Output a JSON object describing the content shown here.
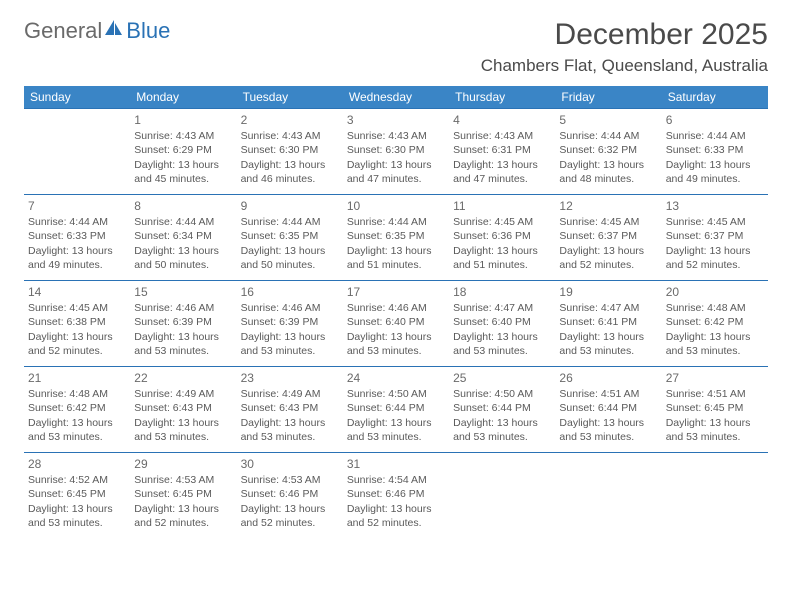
{
  "brand": {
    "part1": "General",
    "part2": "Blue"
  },
  "title": "December 2025",
  "location": "Chambers Flat, Queensland, Australia",
  "colors": {
    "header_bg": "#3a85c6",
    "header_text": "#ffffff",
    "border": "#2a72b5",
    "body_text": "#5a5a5a",
    "brand_gray": "#6a6a6a",
    "brand_blue": "#2a72b5"
  },
  "weekdays": [
    "Sunday",
    "Monday",
    "Tuesday",
    "Wednesday",
    "Thursday",
    "Friday",
    "Saturday"
  ],
  "start_offset": 1,
  "days_in_month": 31,
  "days": {
    "1": {
      "sunrise": "4:43 AM",
      "sunset": "6:29 PM",
      "daylight": "13 hours and 45 minutes."
    },
    "2": {
      "sunrise": "4:43 AM",
      "sunset": "6:30 PM",
      "daylight": "13 hours and 46 minutes."
    },
    "3": {
      "sunrise": "4:43 AM",
      "sunset": "6:30 PM",
      "daylight": "13 hours and 47 minutes."
    },
    "4": {
      "sunrise": "4:43 AM",
      "sunset": "6:31 PM",
      "daylight": "13 hours and 47 minutes."
    },
    "5": {
      "sunrise": "4:44 AM",
      "sunset": "6:32 PM",
      "daylight": "13 hours and 48 minutes."
    },
    "6": {
      "sunrise": "4:44 AM",
      "sunset": "6:33 PM",
      "daylight": "13 hours and 49 minutes."
    },
    "7": {
      "sunrise": "4:44 AM",
      "sunset": "6:33 PM",
      "daylight": "13 hours and 49 minutes."
    },
    "8": {
      "sunrise": "4:44 AM",
      "sunset": "6:34 PM",
      "daylight": "13 hours and 50 minutes."
    },
    "9": {
      "sunrise": "4:44 AM",
      "sunset": "6:35 PM",
      "daylight": "13 hours and 50 minutes."
    },
    "10": {
      "sunrise": "4:44 AM",
      "sunset": "6:35 PM",
      "daylight": "13 hours and 51 minutes."
    },
    "11": {
      "sunrise": "4:45 AM",
      "sunset": "6:36 PM",
      "daylight": "13 hours and 51 minutes."
    },
    "12": {
      "sunrise": "4:45 AM",
      "sunset": "6:37 PM",
      "daylight": "13 hours and 52 minutes."
    },
    "13": {
      "sunrise": "4:45 AM",
      "sunset": "6:37 PM",
      "daylight": "13 hours and 52 minutes."
    },
    "14": {
      "sunrise": "4:45 AM",
      "sunset": "6:38 PM",
      "daylight": "13 hours and 52 minutes."
    },
    "15": {
      "sunrise": "4:46 AM",
      "sunset": "6:39 PM",
      "daylight": "13 hours and 53 minutes."
    },
    "16": {
      "sunrise": "4:46 AM",
      "sunset": "6:39 PM",
      "daylight": "13 hours and 53 minutes."
    },
    "17": {
      "sunrise": "4:46 AM",
      "sunset": "6:40 PM",
      "daylight": "13 hours and 53 minutes."
    },
    "18": {
      "sunrise": "4:47 AM",
      "sunset": "6:40 PM",
      "daylight": "13 hours and 53 minutes."
    },
    "19": {
      "sunrise": "4:47 AM",
      "sunset": "6:41 PM",
      "daylight": "13 hours and 53 minutes."
    },
    "20": {
      "sunrise": "4:48 AM",
      "sunset": "6:42 PM",
      "daylight": "13 hours and 53 minutes."
    },
    "21": {
      "sunrise": "4:48 AM",
      "sunset": "6:42 PM",
      "daylight": "13 hours and 53 minutes."
    },
    "22": {
      "sunrise": "4:49 AM",
      "sunset": "6:43 PM",
      "daylight": "13 hours and 53 minutes."
    },
    "23": {
      "sunrise": "4:49 AM",
      "sunset": "6:43 PM",
      "daylight": "13 hours and 53 minutes."
    },
    "24": {
      "sunrise": "4:50 AM",
      "sunset": "6:44 PM",
      "daylight": "13 hours and 53 minutes."
    },
    "25": {
      "sunrise": "4:50 AM",
      "sunset": "6:44 PM",
      "daylight": "13 hours and 53 minutes."
    },
    "26": {
      "sunrise": "4:51 AM",
      "sunset": "6:44 PM",
      "daylight": "13 hours and 53 minutes."
    },
    "27": {
      "sunrise": "4:51 AM",
      "sunset": "6:45 PM",
      "daylight": "13 hours and 53 minutes."
    },
    "28": {
      "sunrise": "4:52 AM",
      "sunset": "6:45 PM",
      "daylight": "13 hours and 53 minutes."
    },
    "29": {
      "sunrise": "4:53 AM",
      "sunset": "6:45 PM",
      "daylight": "13 hours and 52 minutes."
    },
    "30": {
      "sunrise": "4:53 AM",
      "sunset": "6:46 PM",
      "daylight": "13 hours and 52 minutes."
    },
    "31": {
      "sunrise": "4:54 AM",
      "sunset": "6:46 PM",
      "daylight": "13 hours and 52 minutes."
    }
  },
  "labels": {
    "sunrise": "Sunrise:",
    "sunset": "Sunset:",
    "daylight": "Daylight:"
  }
}
